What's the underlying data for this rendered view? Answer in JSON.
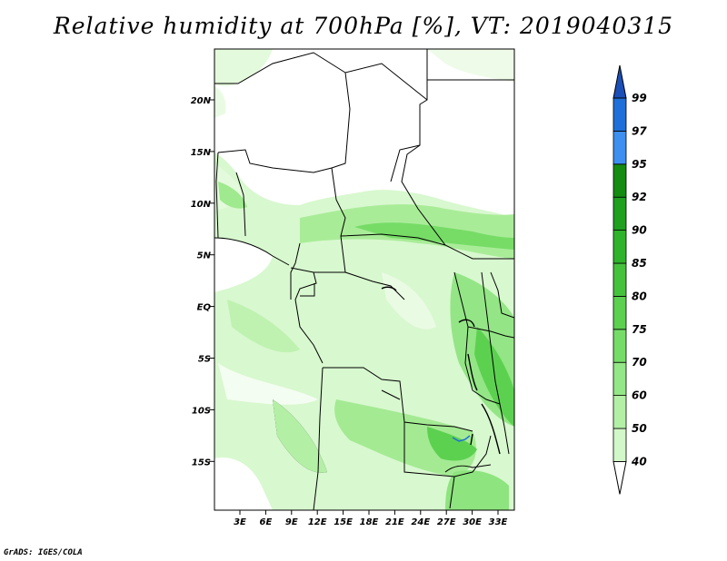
{
  "title": "Relative humidity at 700hPa [%], VT: 2019040315",
  "footer": "GrADS: IGES/COLA",
  "map": {
    "lat_ticks": [
      "20N",
      "15N",
      "10N",
      "5N",
      "EQ",
      "5S",
      "10S",
      "15S"
    ],
    "lon_ticks": [
      "3E",
      "6E",
      "9E",
      "12E",
      "15E",
      "18E",
      "21E",
      "24E",
      "27E",
      "30E",
      "33E"
    ]
  },
  "colorbar": {
    "labels": [
      "40",
      "50",
      "60",
      "70",
      "75",
      "80",
      "85",
      "90",
      "92",
      "95",
      "97",
      "99"
    ],
    "colors": [
      "#eefdea",
      "#d2f7c8",
      "#b3f0a6",
      "#94e786",
      "#75dd67",
      "#5cd150",
      "#45c23c",
      "#2fb32b",
      "#1fa01f",
      "#148c12",
      "#3d8ff0",
      "#1f6fd8",
      "#1b4fb8"
    ]
  }
}
